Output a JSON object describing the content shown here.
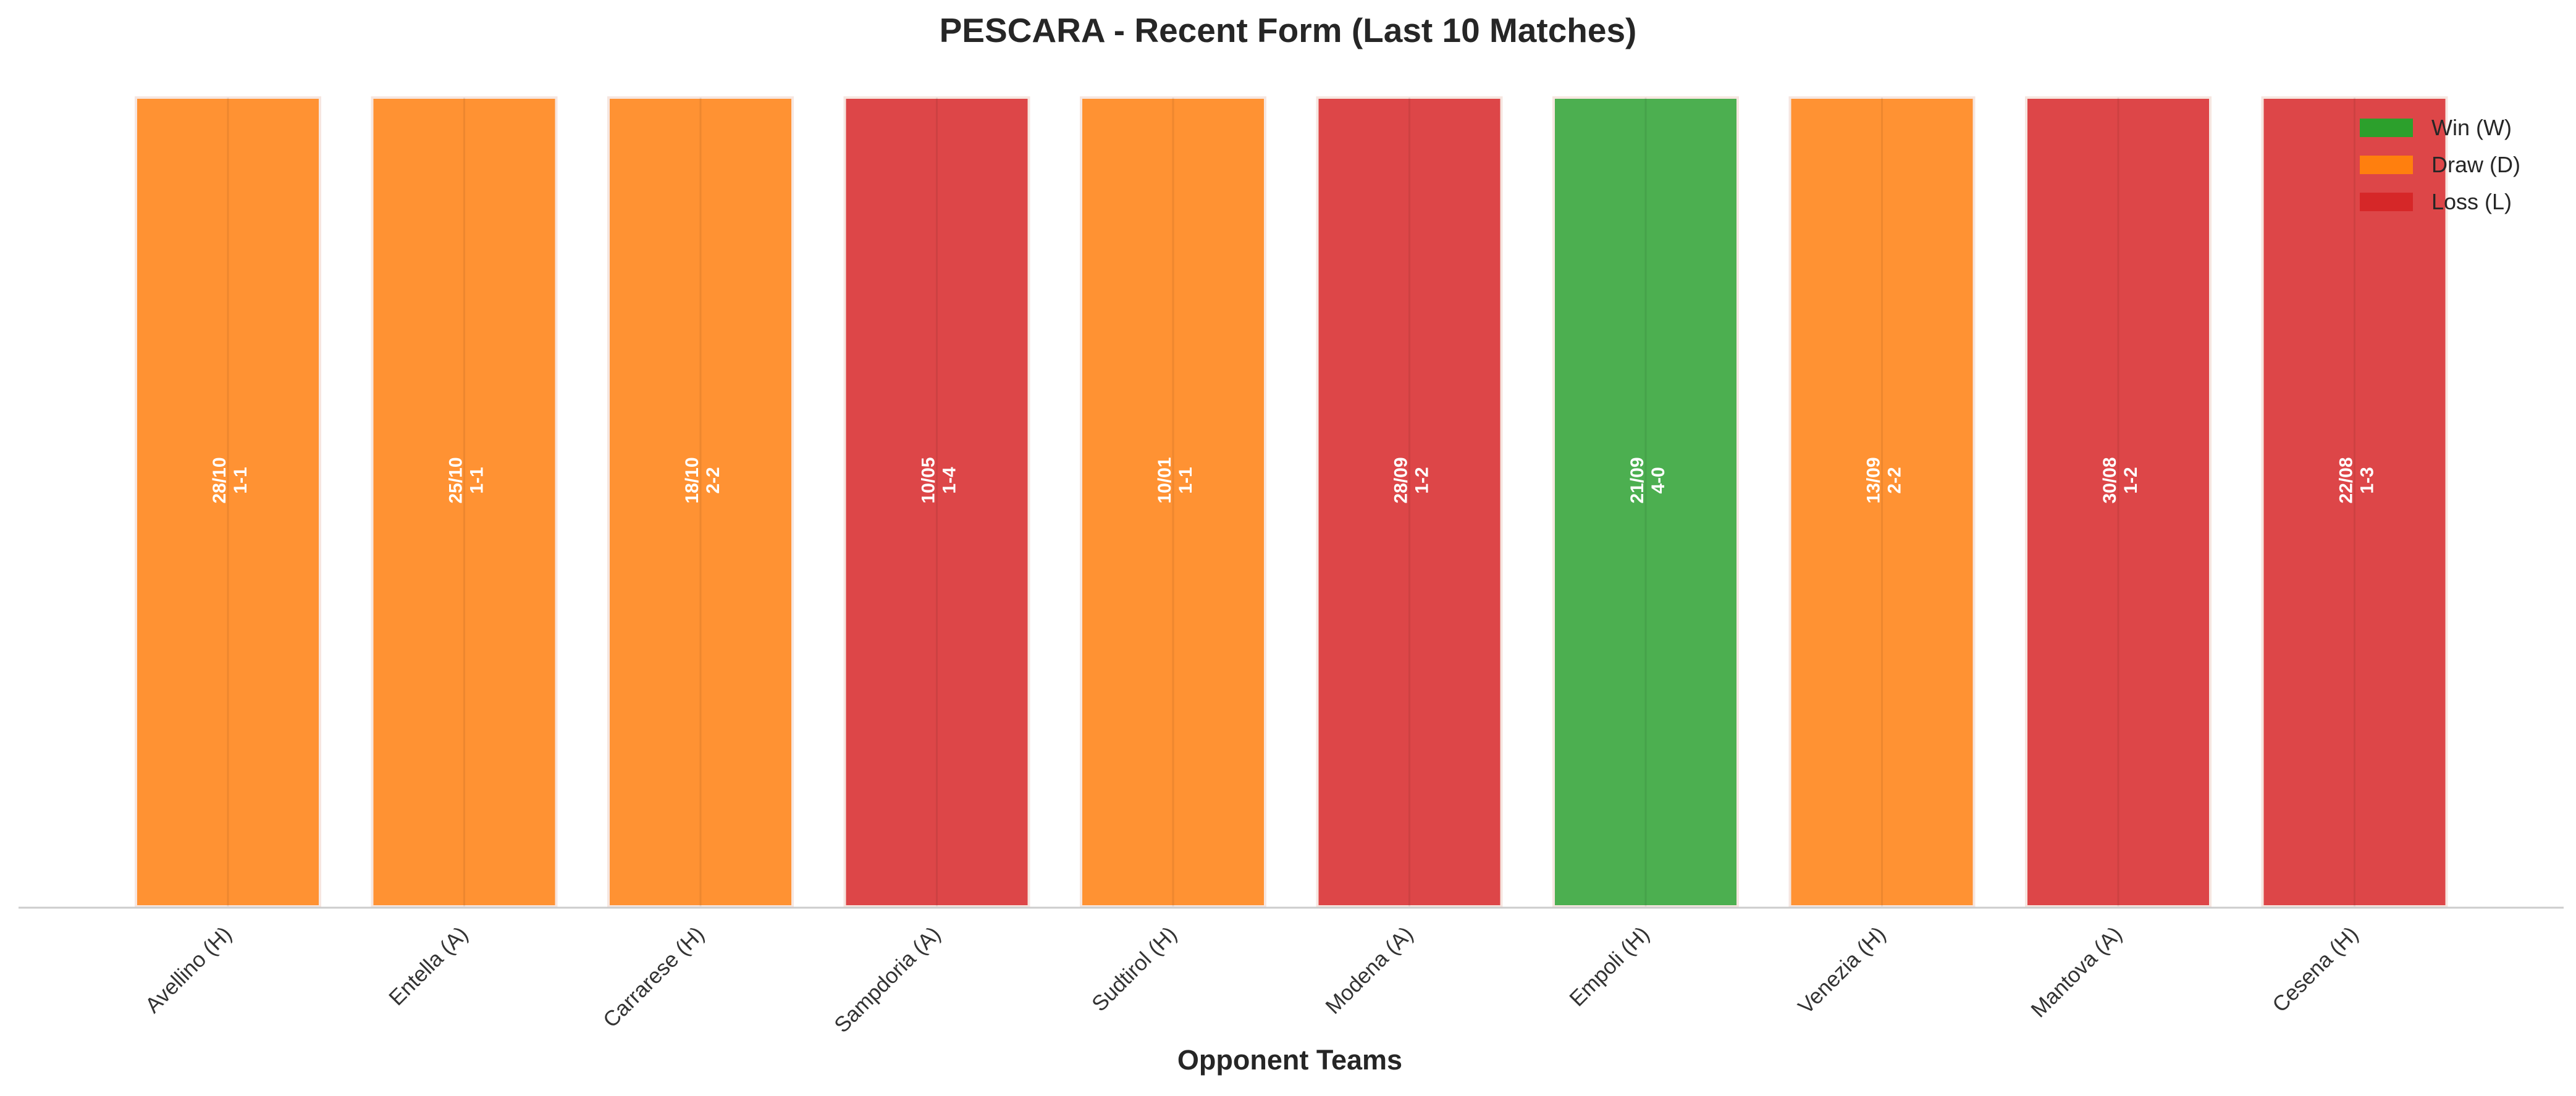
{
  "chart_data": {
    "type": "bar",
    "title": "PESCARA - Recent Form (Last 10 Matches)",
    "xlabel": "Opponent Teams",
    "ylabel": "",
    "categories": [
      "Avellino (H)",
      "Entella (A)",
      "Carrarese (H)",
      "Sampdoria (A)",
      "Sudtirol (H)",
      "Modena (A)",
      "Empoli (H)",
      "Venezia (H)",
      "Mantova (A)",
      "Cesena (H)"
    ],
    "values": [
      1,
      1,
      1,
      1,
      1,
      1,
      1,
      1,
      1,
      1
    ],
    "results": [
      "D",
      "D",
      "D",
      "L",
      "D",
      "L",
      "W",
      "D",
      "L",
      "L"
    ],
    "dates": [
      "28/10",
      "25/10",
      "18/10",
      "10/05",
      "10/01",
      "28/09",
      "21/09",
      "13/09",
      "30/08",
      "22/08"
    ],
    "scores": [
      "1-1",
      "1-1",
      "2-2",
      "1-4",
      "1-1",
      "1-2",
      "4-0",
      "2-2",
      "1-2",
      "1-3"
    ],
    "ylim": [
      0,
      1
    ],
    "grid": false,
    "legend": {
      "placement": "top-right",
      "entries": [
        {
          "key": "W",
          "label": "Win (W)",
          "color": "#2ca02c"
        },
        {
          "key": "D",
          "label": "Draw (D)",
          "color": "#ff7f0e"
        },
        {
          "key": "L",
          "label": "Loss (L)",
          "color": "#d62728"
        }
      ]
    },
    "colors": {
      "W": "#4caf50",
      "D": "#ff9233",
      "L": "#dd4648"
    }
  }
}
